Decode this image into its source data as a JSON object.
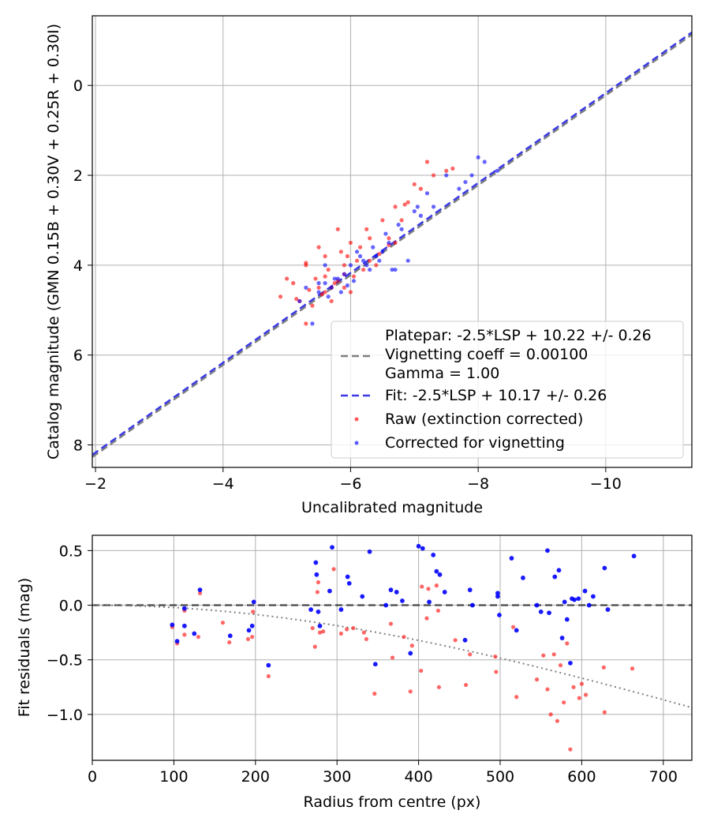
{
  "chart_data": [
    {
      "type": "scatter",
      "xlabel": "Uncalibrated magnitude",
      "ylabel": "Catalog magnitude (GMN 0.15B + 0.30V + 0.25R + 0.30I)",
      "xlim": [
        -1.95,
        -11.35
      ],
      "ylim": [
        8.5,
        -1.55
      ],
      "x_inverted": true,
      "y_inverted": true,
      "grid": true,
      "xticks": [
        -2,
        -4,
        -6,
        -8,
        -10
      ],
      "xtick_labels": [
        "−2",
        "−4",
        "−6",
        "−8",
        "−10"
      ],
      "yticks": [
        0,
        2,
        4,
        6,
        8
      ],
      "ytick_labels": [
        "0",
        "2",
        "4",
        "6",
        "8"
      ],
      "legend_position": "lower-right",
      "lines": [
        {
          "name": "Platepar: -2.5*LSP + 10.22 +/- 0.26\nVignetting coeff = 0.00100\nGamma = 1.00",
          "slope": 1,
          "intercept": 10.22,
          "color": "#808080",
          "style": "dashed"
        },
        {
          "name": "Fit: -2.5*LSP + 10.17 +/- 0.26",
          "slope": 1,
          "intercept": 10.17,
          "color": "#3a3ae6",
          "style": "dashed"
        }
      ],
      "series": [
        {
          "name": "Raw (extinction corrected)",
          "color": "#ff0000",
          "points": [
            [
              -5.3,
              4.0
            ],
            [
              -5.6,
              3.8
            ],
            [
              -5.2,
              4.8
            ],
            [
              -5.7,
              4.5
            ],
            [
              -5.9,
              4.2
            ],
            [
              -6.0,
              3.5
            ],
            [
              -5.8,
              3.2
            ],
            [
              -6.3,
              3.4
            ],
            [
              -6.5,
              3.0
            ],
            [
              -6.9,
              2.6
            ],
            [
              -7.2,
              1.7
            ],
            [
              -7.5,
              1.9
            ],
            [
              -6.7,
              2.7
            ],
            [
              -5.5,
              4.5
            ],
            [
              -5.1,
              4.4
            ],
            [
              -5.4,
              4.9
            ],
            [
              -5.6,
              4.6
            ],
            [
              -5.75,
              4.4
            ],
            [
              -5.9,
              4.0
            ],
            [
              -6.1,
              3.9
            ],
            [
              -6.2,
              4.1
            ],
            [
              -5.3,
              5.3
            ],
            [
              -5.0,
              4.3
            ],
            [
              -4.9,
              4.7
            ],
            [
              -5.5,
              3.6
            ],
            [
              -5.85,
              3.7
            ],
            [
              -6.4,
              4.0
            ],
            [
              -6.6,
              3.4
            ],
            [
              -5.7,
              4.8
            ],
            [
              -6.0,
              4.6
            ],
            [
              -5.65,
              4.1
            ],
            [
              -6.3,
              3.9
            ],
            [
              -7.3,
              2.0
            ],
            [
              -6.8,
              3.0
            ],
            [
              -5.3,
              3.95
            ],
            [
              -5.45,
              4.3
            ],
            [
              -6.05,
              4.25
            ],
            [
              -6.15,
              3.6
            ],
            [
              -5.95,
              3.8
            ],
            [
              -6.7,
              3.5
            ],
            [
              -7.1,
              2.3
            ],
            [
              -7.0,
              2.2
            ],
            [
              -5.15,
              4.75
            ],
            [
              -5.55,
              4.65
            ],
            [
              -6.25,
              3.2
            ],
            [
              -5.8,
              4.35
            ],
            [
              -6.45,
              3.75
            ],
            [
              -5.35,
              4.55
            ],
            [
              -5.6,
              4.25
            ],
            [
              -7.6,
              1.85
            ],
            [
              -6.85,
              2.65
            ],
            [
              -5.9,
              4.5
            ],
            [
              -6.6,
              3.55
            ]
          ]
        },
        {
          "name": "Corrected for vignetting",
          "color": "#0000ff",
          "points": [
            [
              -5.3,
              4.5
            ],
            [
              -5.6,
              4.4
            ],
            [
              -5.8,
              4.3
            ],
            [
              -5.9,
              4.2
            ],
            [
              -6.0,
              4.0
            ],
            [
              -6.2,
              3.9
            ],
            [
              -6.4,
              3.8
            ],
            [
              -6.6,
              3.5
            ],
            [
              -6.8,
              3.2
            ],
            [
              -7.0,
              2.8
            ],
            [
              -7.2,
              2.4
            ],
            [
              -7.5,
              2.0
            ],
            [
              -7.7,
              2.3
            ],
            [
              -7.9,
              2.0
            ],
            [
              -8.1,
              1.7
            ],
            [
              -8.3,
              1.9
            ],
            [
              -5.5,
              4.6
            ],
            [
              -5.7,
              4.5
            ],
            [
              -5.75,
              4.3
            ],
            [
              -6.05,
              4.35
            ],
            [
              -6.1,
              3.7
            ],
            [
              -6.3,
              4.1
            ],
            [
              -6.5,
              3.7
            ],
            [
              -6.7,
              4.1
            ],
            [
              -6.9,
              3.9
            ],
            [
              -7.1,
              2.9
            ],
            [
              -5.4,
              5.3
            ],
            [
              -5.2,
              4.8
            ],
            [
              -5.6,
              4.0
            ],
            [
              -5.85,
              4.6
            ],
            [
              -6.15,
              3.8
            ],
            [
              -6.35,
              3.6
            ],
            [
              -6.55,
              3.3
            ],
            [
              -6.75,
              3.1
            ],
            [
              -7.3,
              2.7
            ],
            [
              -8.0,
              1.6
            ],
            [
              -7.8,
              2.15
            ],
            [
              -5.5,
              4.4
            ],
            [
              -5.95,
              4.45
            ],
            [
              -6.25,
              4.0
            ],
            [
              -6.45,
              3.9
            ],
            [
              -6.65,
              4.1
            ],
            [
              -7.05,
              2.7
            ],
            [
              -5.65,
              4.7
            ]
          ]
        }
      ]
    },
    {
      "type": "scatter",
      "xlabel": "Radius from centre (px)",
      "ylabel": "Fit residuals (mag)",
      "xlim": [
        0,
        735
      ],
      "ylim": [
        -1.42,
        0.64
      ],
      "grid": true,
      "xticks": [
        0,
        100,
        200,
        300,
        400,
        500,
        600,
        700
      ],
      "xtick_labels": [
        "0",
        "100",
        "200",
        "300",
        "400",
        "500",
        "600",
        "700"
      ],
      "yticks": [
        0.5,
        0.0,
        -0.5,
        -1.0
      ],
      "ytick_labels": [
        "0.5",
        "0.0",
        "−0.5",
        "−1.0"
      ],
      "zero_line": {
        "y": 0,
        "color": "#000000",
        "style": "dashed"
      },
      "vignetting_curve": {
        "coeff": 0.001,
        "color": "#808080",
        "style": "dotted"
      },
      "series": [
        {
          "name": "Raw (extinction corrected)",
          "color": "#ff0000",
          "points": [
            [
              98,
              -0.2
            ],
            [
              104,
              -0.35
            ],
            [
              113,
              -0.05
            ],
            [
              113,
              -0.27
            ],
            [
              130,
              -0.29
            ],
            [
              132,
              0.11
            ],
            [
              160,
              -0.16
            ],
            [
              168,
              -0.34
            ],
            [
              191,
              -0.31
            ],
            [
              196,
              -0.29
            ],
            [
              197,
              -0.06
            ],
            [
              216,
              -0.65
            ],
            [
              270,
              -0.21
            ],
            [
              273,
              -0.38
            ],
            [
              276,
              0.12
            ],
            [
              277,
              0.21
            ],
            [
              279,
              -0.25
            ],
            [
              283,
              -0.24
            ],
            [
              296,
              0.33
            ],
            [
              305,
              -0.26
            ],
            [
              312,
              -0.22
            ],
            [
              320,
              -0.21
            ],
            [
              333,
              -0.25
            ],
            [
              336,
              -0.31
            ],
            [
              346,
              -0.81
            ],
            [
              366,
              -0.17
            ],
            [
              368,
              -0.48
            ],
            [
              382,
              -0.29
            ],
            [
              390,
              -0.79
            ],
            [
              392,
              -0.37
            ],
            [
              403,
              -0.6
            ],
            [
              404,
              0.17
            ],
            [
              410,
              -0.12
            ],
            [
              412,
              0.15
            ],
            [
              425,
              -0.75
            ],
            [
              445,
              -0.32
            ],
            [
              458,
              -0.73
            ],
            [
              463,
              -0.45
            ],
            [
              494,
              -0.47
            ],
            [
              495,
              -0.61
            ],
            [
              516,
              -0.2
            ],
            [
              520,
              -0.84
            ],
            [
              545,
              -0.68
            ],
            [
              553,
              -0.46
            ],
            [
              558,
              -0.77
            ],
            [
              562,
              -1.0
            ],
            [
              566,
              -0.45
            ],
            [
              570,
              -1.06
            ],
            [
              574,
              -0.55
            ],
            [
              578,
              -0.89
            ],
            [
              582,
              -0.35
            ],
            [
              586,
              -1.32
            ],
            [
              590,
              -0.75
            ],
            [
              600,
              -0.72
            ],
            [
              605,
              -0.82
            ],
            [
              628,
              -0.98
            ],
            [
              662,
              -0.58
            ],
            [
              627,
              -0.57
            ],
            [
              597,
              -0.85
            ],
            [
              424,
              -0.05
            ],
            [
              422,
              0.18
            ]
          ]
        },
        {
          "name": "Corrected for vignetting",
          "color": "#0000ff",
          "points": [
            [
              98,
              -0.18
            ],
            [
              104,
              -0.33
            ],
            [
              113,
              -0.19
            ],
            [
              113,
              -0.03
            ],
            [
              125,
              -0.26
            ],
            [
              132,
              0.14
            ],
            [
              169,
              -0.28
            ],
            [
              192,
              -0.23
            ],
            [
              196,
              -0.19
            ],
            [
              198,
              0.03
            ],
            [
              216,
              -0.55
            ],
            [
              268,
              -0.04
            ],
            [
              274,
              0.39
            ],
            [
              275,
              0.28
            ],
            [
              277,
              -0.06
            ],
            [
              279,
              -0.19
            ],
            [
              291,
              0.13
            ],
            [
              294,
              0.53
            ],
            [
              305,
              -0.04
            ],
            [
              313,
              0.26
            ],
            [
              315,
              0.2
            ],
            [
              331,
              0.08
            ],
            [
              340,
              0.49
            ],
            [
              347,
              -0.54
            ],
            [
              360,
              0.0
            ],
            [
              366,
              0.14
            ],
            [
              373,
              0.12
            ],
            [
              380,
              0.04
            ],
            [
              390,
              -0.44
            ],
            [
              400,
              0.54
            ],
            [
              405,
              0.52
            ],
            [
              413,
              0.03
            ],
            [
              418,
              0.46
            ],
            [
              422,
              0.31
            ],
            [
              426,
              0.28
            ],
            [
              432,
              0.12
            ],
            [
              457,
              -0.32
            ],
            [
              463,
              0.14
            ],
            [
              466,
              0.0
            ],
            [
              497,
              0.11
            ],
            [
              497,
              0.08
            ],
            [
              499,
              -0.09
            ],
            [
              514,
              0.43
            ],
            [
              520,
              -0.23
            ],
            [
              528,
              0.25
            ],
            [
              545,
              0.0
            ],
            [
              550,
              -0.06
            ],
            [
              558,
              0.5
            ],
            [
              560,
              -0.07
            ],
            [
              567,
              0.26
            ],
            [
              572,
              0.32
            ],
            [
              576,
              -0.3
            ],
            [
              582,
              -0.13
            ],
            [
              588,
              0.06
            ],
            [
              591,
              0.05
            ],
            [
              596,
              0.06
            ],
            [
              604,
              0.13
            ],
            [
              609,
              0.0
            ],
            [
              614,
              0.08
            ],
            [
              628,
              0.34
            ],
            [
              632,
              -0.04
            ],
            [
              664,
              0.45
            ],
            [
              586,
              -0.53
            ],
            [
              579,
              0.03
            ]
          ]
        }
      ]
    }
  ]
}
